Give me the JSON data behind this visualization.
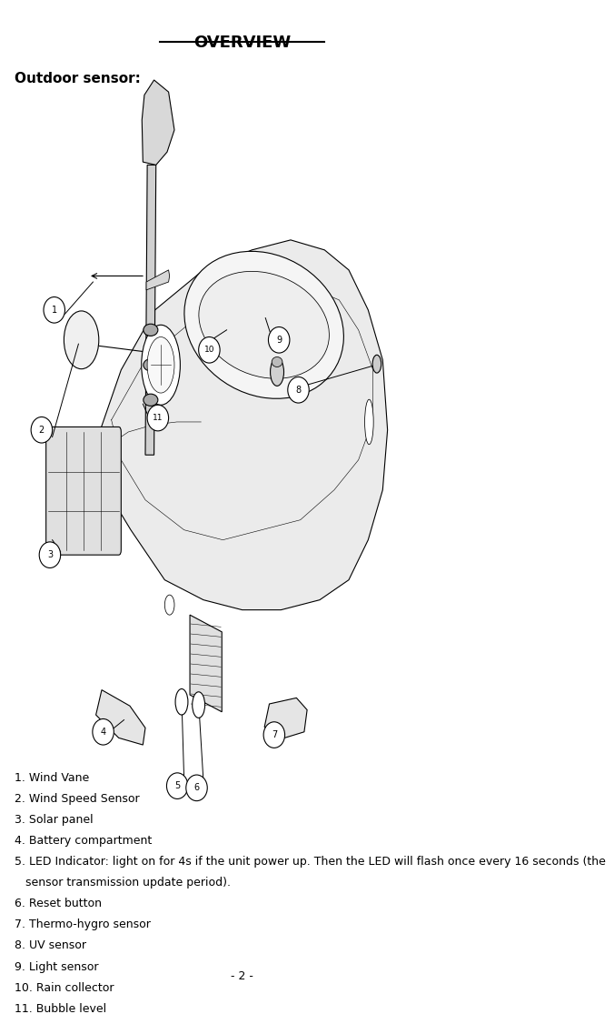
{
  "title": "OVERVIEW",
  "section_label": "Outdoor sensor:",
  "legend_items": [
    "1. Wind Vane",
    "2. Wind Speed Sensor",
    "3. Solar panel",
    "4. Battery compartment",
    "5. LED Indicator: light on for 4s if the unit power up. Then the LED will flash once every 16 seconds (the",
    "   sensor transmission update period).",
    "6. Reset button",
    "7. Thermo-hygro sensor",
    "8. UV sensor",
    "9. Light sensor",
    "10. Rain collector",
    "11. Bubble level"
  ],
  "page_number": "- 2 -",
  "bg_color": "#ffffff",
  "text_color": "#000000",
  "title_fontsize": 13,
  "label_fontsize": 11,
  "legend_fontsize": 9,
  "page_fontsize": 9
}
